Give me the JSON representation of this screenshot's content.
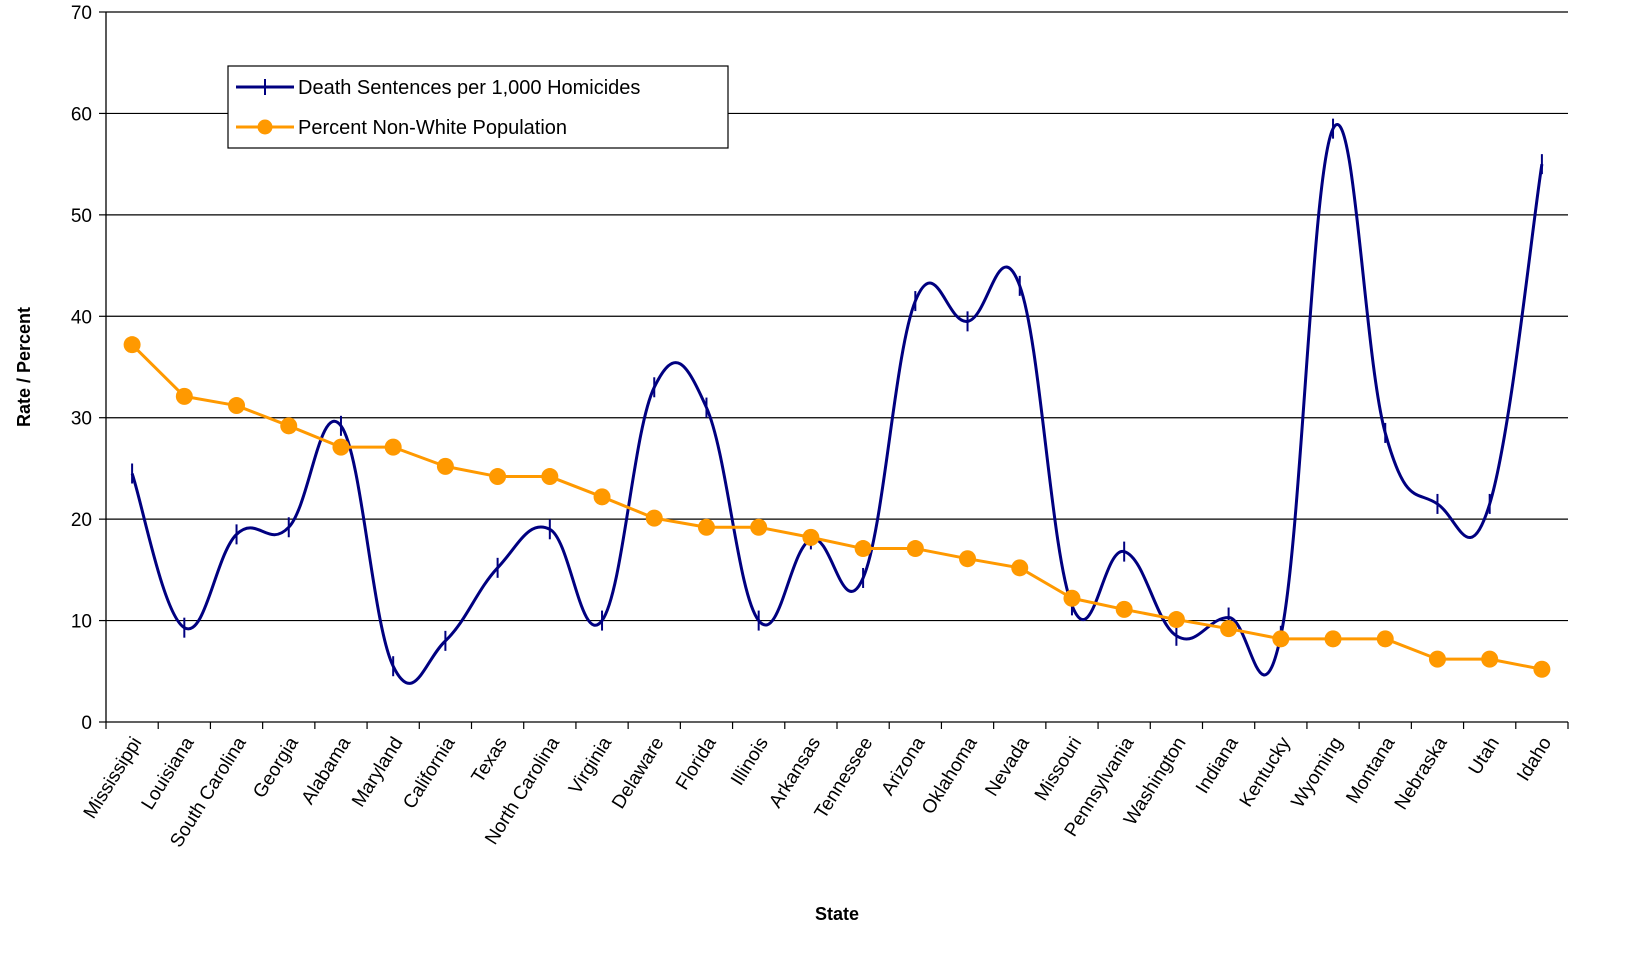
{
  "chart_data": {
    "type": "line",
    "title": "",
    "xlabel": "State",
    "ylabel": "Rate / Percent",
    "ylim": [
      0,
      70
    ],
    "yticks": [
      0,
      10,
      20,
      30,
      40,
      50,
      60,
      70
    ],
    "grid": "horizontal",
    "legend_position": "top-left",
    "categories": [
      "Mississippi",
      "Louisiana",
      "South Carolina",
      "Georgia",
      "Alabama",
      "Maryland",
      "California",
      "Texas",
      "North Carolina",
      "Virginia",
      "Delaware",
      "Florida",
      "Illinois",
      "Arkansas",
      "Tennessee",
      "Arizona",
      "Oklahoma",
      "Nevada",
      "Missouri",
      "Pennsylvania",
      "Washington",
      "Indiana",
      "Kentucky",
      "Wyoming",
      "Montana",
      "Nebraska",
      "Utah",
      "Idaho"
    ],
    "series": [
      {
        "name": "Death Sentences per 1,000 Homicides",
        "color": "#000080",
        "marker": "dash",
        "smooth": true,
        "values": [
          24.5,
          9.3,
          18.5,
          19.2,
          29.2,
          5.5,
          8.0,
          15.2,
          19.0,
          10.0,
          33.0,
          31.0,
          10.0,
          18.0,
          14.2,
          41.5,
          39.5,
          43.0,
          11.5,
          16.8,
          8.5,
          10.3,
          8.5,
          58.5,
          28.5,
          21.5,
          21.5,
          55.0
        ]
      },
      {
        "name": "Percent Non-White Population",
        "color": "#FF9900",
        "marker": "circle",
        "smooth": false,
        "values": [
          37.2,
          32.1,
          31.2,
          29.2,
          27.1,
          27.1,
          25.2,
          24.2,
          24.2,
          22.2,
          20.1,
          19.2,
          19.2,
          18.2,
          17.1,
          17.1,
          16.1,
          15.2,
          12.2,
          11.1,
          10.1,
          9.2,
          8.2,
          8.2,
          8.2,
          6.2,
          6.2,
          5.2
        ]
      }
    ]
  }
}
